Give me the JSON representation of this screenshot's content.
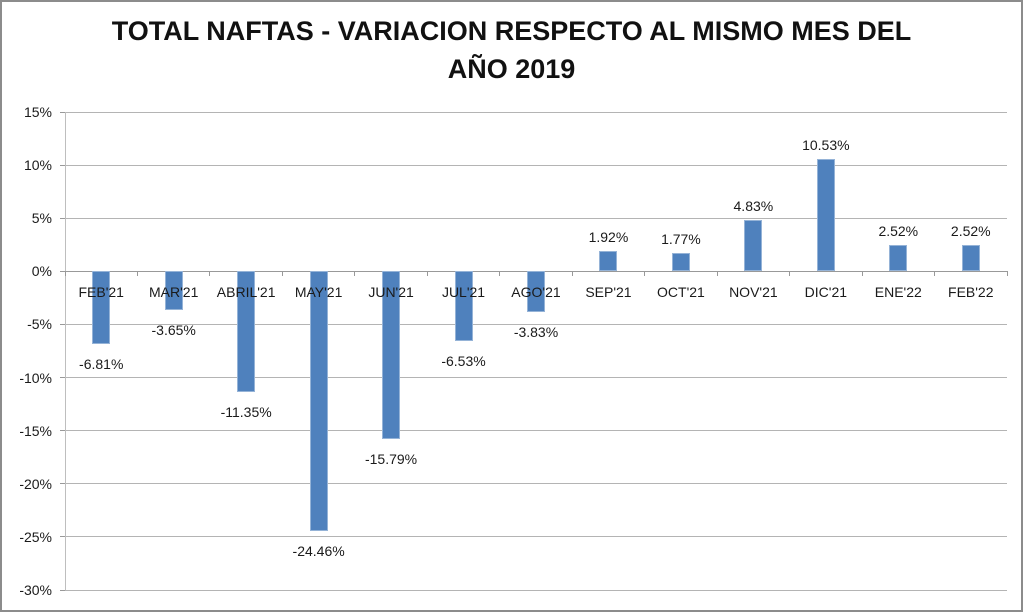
{
  "window": {
    "background": "#FFFFFF",
    "border_color": "#8C8C8C"
  },
  "chart_data": {
    "type": "bar",
    "title": "TOTAL NAFTAS - VARIACION RESPECTO AL MISMO MES DEL AÑO 2019",
    "title_lines": [
      "TOTAL NAFTAS - VARIACION RESPECTO AL MISMO MES DEL",
      "AÑO 2019"
    ],
    "categories": [
      "FEB'21",
      "MAR'21",
      "ABRIL'21",
      "MAY'21",
      "JUN'21",
      "JUL'21",
      "AGO'21",
      "SEP'21",
      "OCT'21",
      "NOV'21",
      "DIC'21",
      "ENE'22",
      "FEB'22"
    ],
    "values": [
      -6.81,
      -3.65,
      -11.35,
      -24.46,
      -15.79,
      -6.53,
      -3.83,
      1.92,
      1.77,
      4.83,
      10.53,
      2.52,
      2.52
    ],
    "data_labels": [
      "-6.81%",
      "-3.65%",
      "-11.35%",
      "-24.46%",
      "-15.79%",
      "-6.53%",
      "-3.83%",
      "1.92%",
      "1.77%",
      "4.83%",
      "10.53%",
      "2.52%",
      "2.52%"
    ],
    "xlabel": "",
    "ylabel": "",
    "ylim": [
      -30,
      15
    ],
    "yticks": [
      15,
      10,
      5,
      0,
      -5,
      -10,
      -15,
      -20,
      -25,
      -30
    ],
    "ytick_labels": [
      "15%",
      "10%",
      "5%",
      "0%",
      "-5%",
      "-10%",
      "-15%",
      "-20%",
      "-25%",
      "-30%"
    ],
    "grid": true,
    "legend": "none",
    "colors": {
      "bar_fill": "#4F81BD",
      "bar_border": "#95B3D7",
      "gridline": "#B4B4B4",
      "zero_line": "#999999",
      "axis_line": "#BEBEBE",
      "text": "#1A1A1A"
    }
  }
}
